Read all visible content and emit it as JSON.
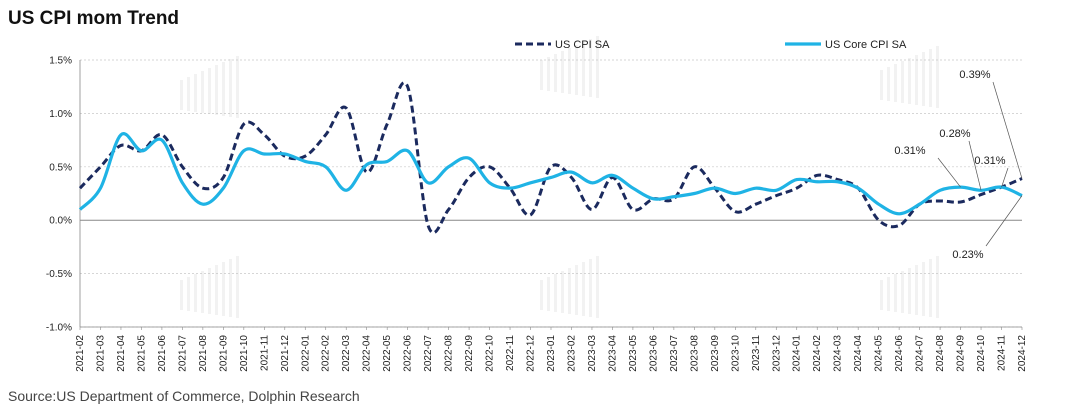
{
  "title": "US CPI mom Trend",
  "source": "Source:US Department of Commerce, Dolphin Research",
  "colors": {
    "cpi": "#1b2a5e",
    "core": "#1fb3e5",
    "grid": "#c8c8c8",
    "axis": "#888888"
  },
  "chart_data": {
    "type": "line",
    "title": "US CPI mom Trend",
    "xlabel": "",
    "ylabel": "",
    "ylim": [
      -1.0,
      1.5
    ],
    "yticks": [
      1.5,
      1.0,
      0.5,
      0.0,
      -0.5,
      -1.0
    ],
    "yticklabels": [
      "1.5%",
      "1.0%",
      "0.5%",
      "0.0%",
      "-0.5%",
      "-1.0%"
    ],
    "grid": "horizontal",
    "legend_position": "top",
    "x": [
      "2021-02",
      "2021-03",
      "2021-04",
      "2021-05",
      "2021-06",
      "2021-07",
      "2021-08",
      "2021-09",
      "2021-10",
      "2021-11",
      "2021-12",
      "2022-01",
      "2022-02",
      "2022-03",
      "2022-04",
      "2022-05",
      "2022-06",
      "2022-07",
      "2022-08",
      "2022-09",
      "2022-10",
      "2022-11",
      "2022-12",
      "2023-01",
      "2023-02",
      "2023-03",
      "2023-04",
      "2023-05",
      "2023-06",
      "2023-07",
      "2023-08",
      "2023-09",
      "2023-10",
      "2023-11",
      "2023-12",
      "2024-01",
      "2024-02",
      "2024-03",
      "2024-04",
      "2024-05",
      "2024-06",
      "2024-07",
      "2024-08",
      "2024-09",
      "2024-10",
      "2024-11",
      "2024-12"
    ],
    "series": [
      {
        "name": "US CPI SA",
        "style": "dashed",
        "values": [
          0.3,
          0.5,
          0.7,
          0.65,
          0.8,
          0.5,
          0.3,
          0.4,
          0.9,
          0.8,
          0.6,
          0.6,
          0.8,
          1.05,
          0.45,
          0.9,
          1.25,
          -0.05,
          0.1,
          0.4,
          0.5,
          0.3,
          0.05,
          0.5,
          0.4,
          0.1,
          0.4,
          0.1,
          0.2,
          0.2,
          0.5,
          0.3,
          0.08,
          0.15,
          0.23,
          0.3,
          0.42,
          0.38,
          0.3,
          0.0,
          -0.05,
          0.15,
          0.18,
          0.17,
          0.24,
          0.31,
          0.39
        ]
      },
      {
        "name": "US Core CPI SA",
        "style": "solid",
        "values": [
          0.1,
          0.3,
          0.8,
          0.65,
          0.75,
          0.35,
          0.15,
          0.3,
          0.65,
          0.62,
          0.62,
          0.55,
          0.5,
          0.28,
          0.52,
          0.55,
          0.65,
          0.35,
          0.5,
          0.58,
          0.35,
          0.3,
          0.35,
          0.4,
          0.45,
          0.35,
          0.42,
          0.3,
          0.2,
          0.22,
          0.25,
          0.3,
          0.25,
          0.3,
          0.28,
          0.38,
          0.36,
          0.36,
          0.3,
          0.15,
          0.06,
          0.15,
          0.28,
          0.31,
          0.28,
          0.31,
          0.23
        ]
      }
    ],
    "annotations": [
      {
        "label": "0.39%",
        "series": "US CPI SA",
        "x": "2024-12"
      },
      {
        "label": "0.28%",
        "series": "US Core CPI SA",
        "x": "2024-10"
      },
      {
        "label": "0.31%",
        "series": "US Core CPI SA",
        "x": "2024-09"
      },
      {
        "label": "0.31%",
        "series": "US CPI SA",
        "x": "2024-11"
      },
      {
        "label": "0.23%",
        "series": "US Core CPI SA",
        "x": "2024-12"
      }
    ]
  }
}
